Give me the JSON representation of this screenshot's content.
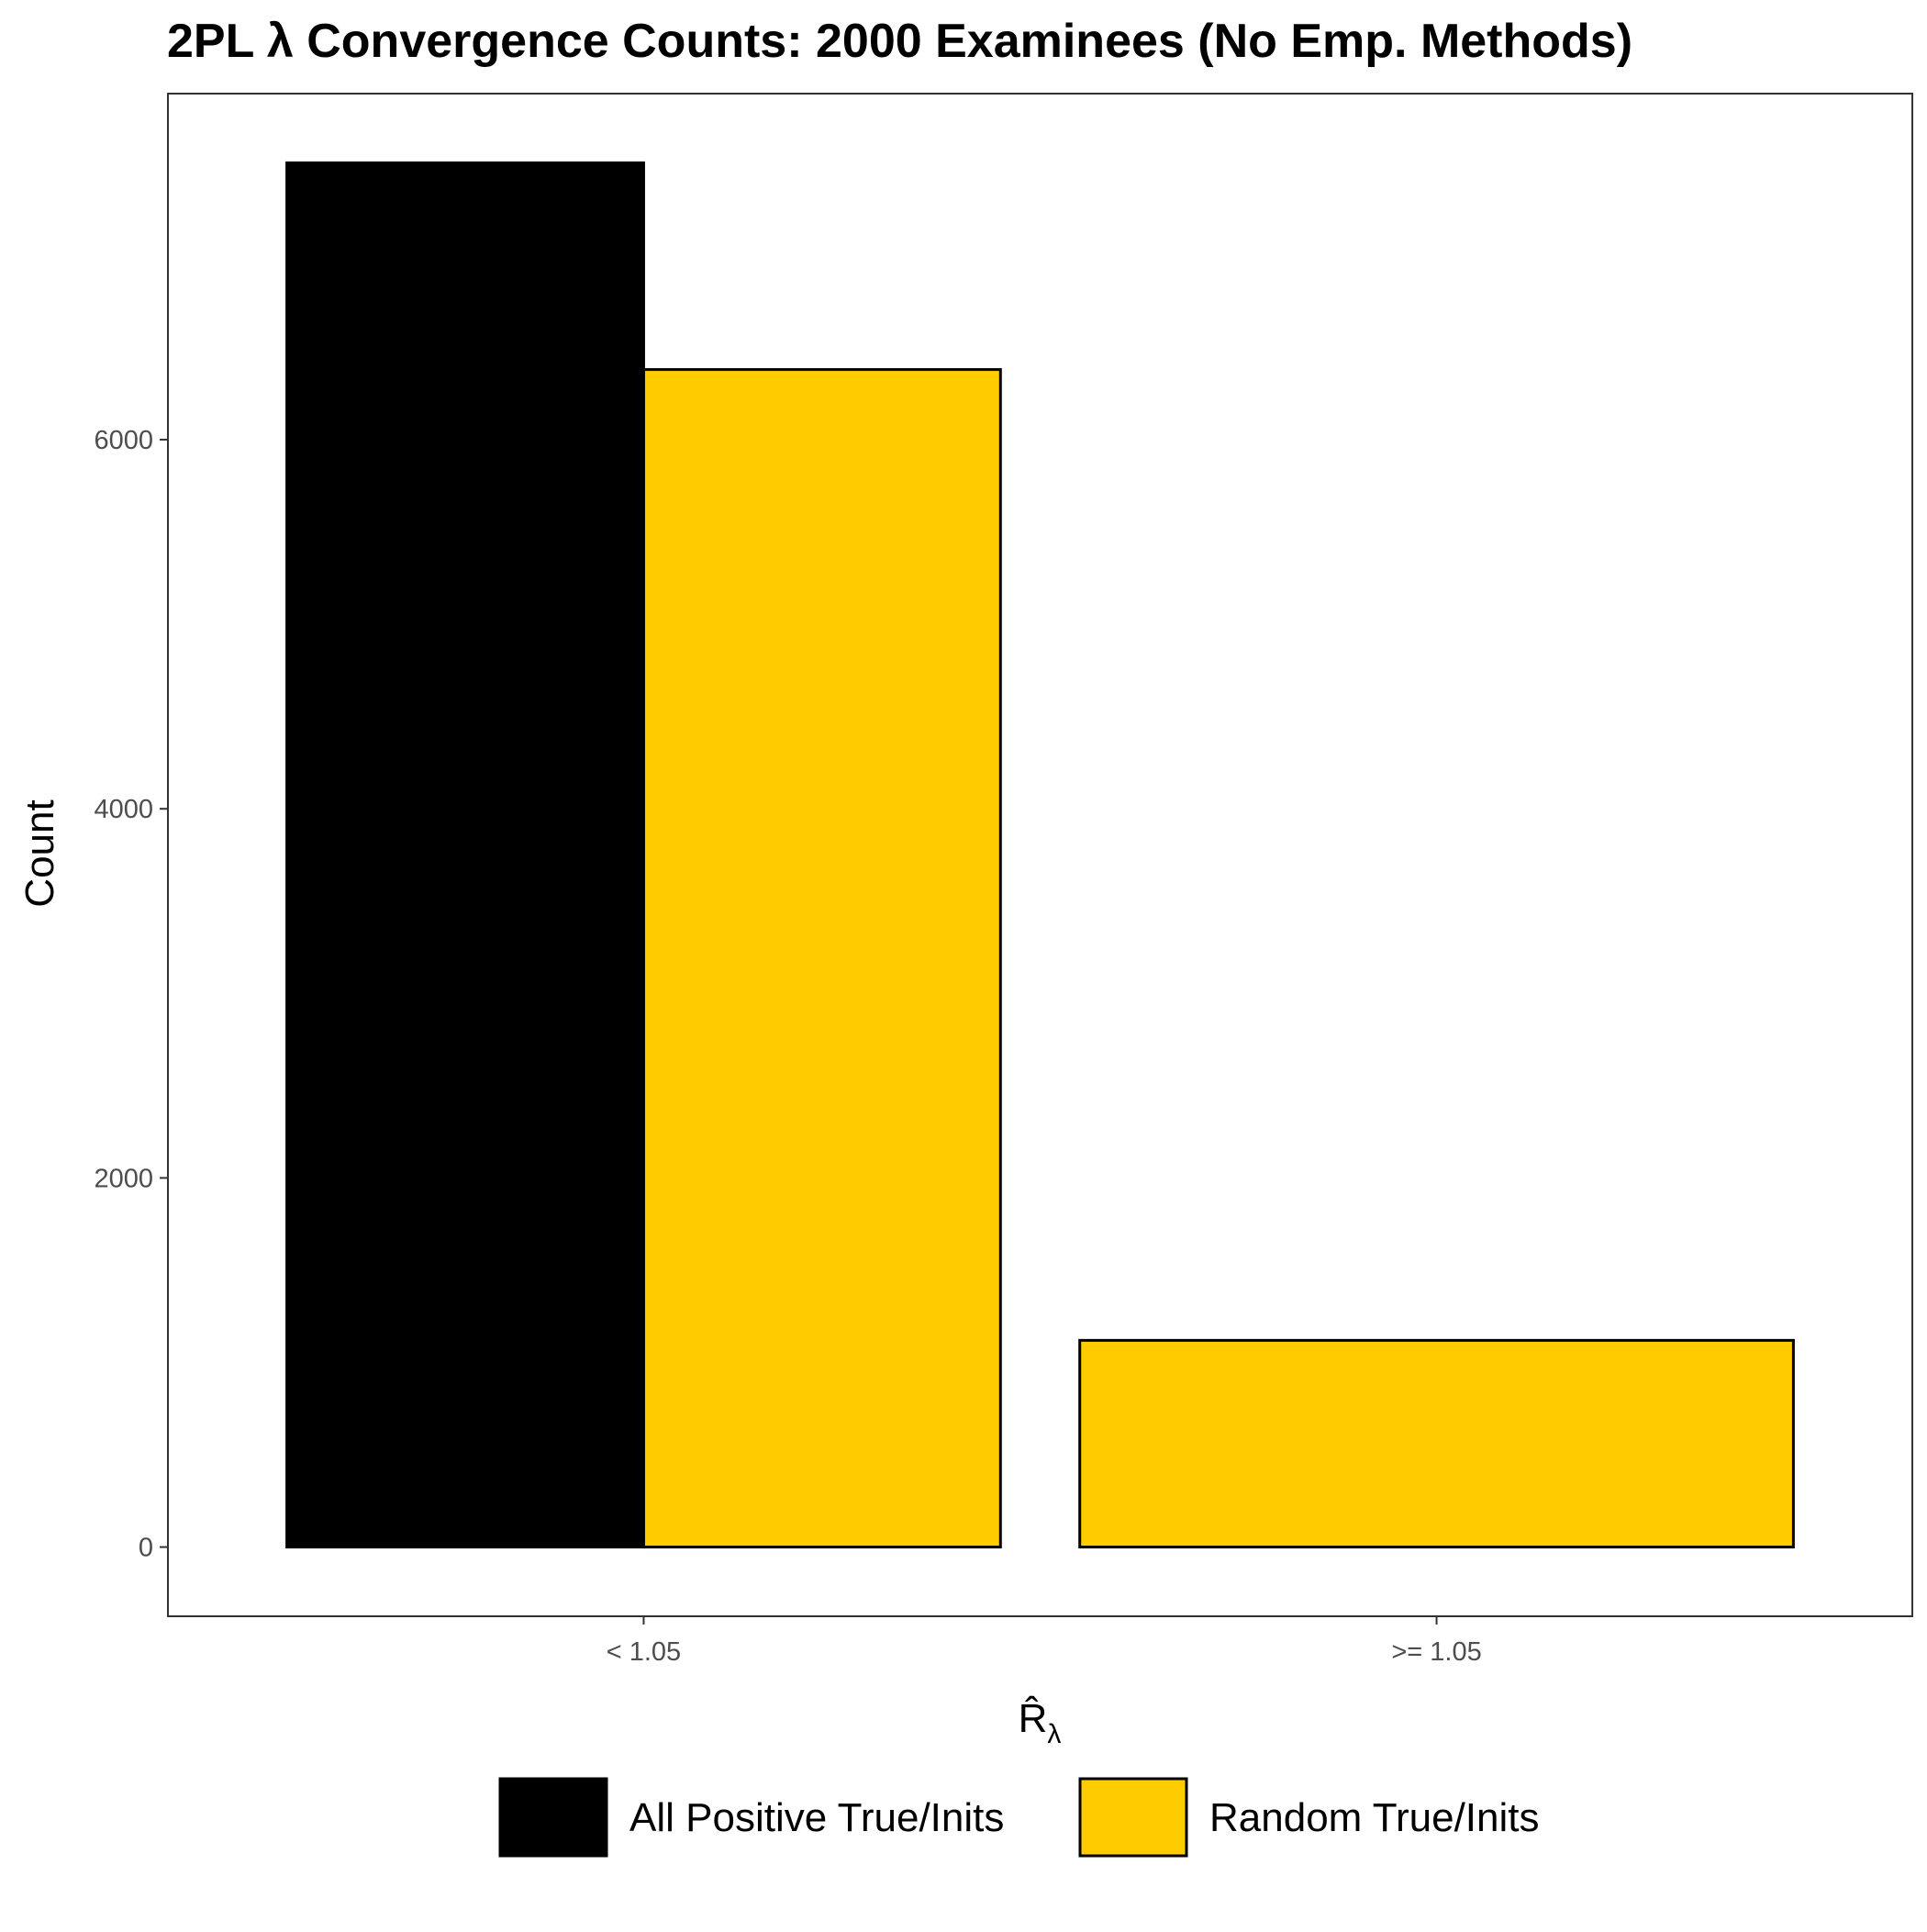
{
  "chart_data": {
    "type": "bar",
    "title": "2PL λ Convergence Counts: 2000 Examinees (No Emp. Methods)",
    "xlabel": "R̂",
    "xlabel_subscript": "λ",
    "ylabel": "Count",
    "categories": [
      "< 1.05",
      ">= 1.05"
    ],
    "series": [
      {
        "name": "All Positive True/Inits",
        "values": [
          7500,
          0
        ],
        "color": "#000000"
      },
      {
        "name": "Random True/Inits",
        "values": [
          6380,
          1120
        ],
        "color": "#FFCC00"
      }
    ],
    "yticks": [
      0,
      2000,
      4000,
      6000
    ],
    "ylim": [
      -375,
      7875
    ],
    "grid": false,
    "legend_position": "bottom",
    "bar_outline_color": "#000000"
  }
}
